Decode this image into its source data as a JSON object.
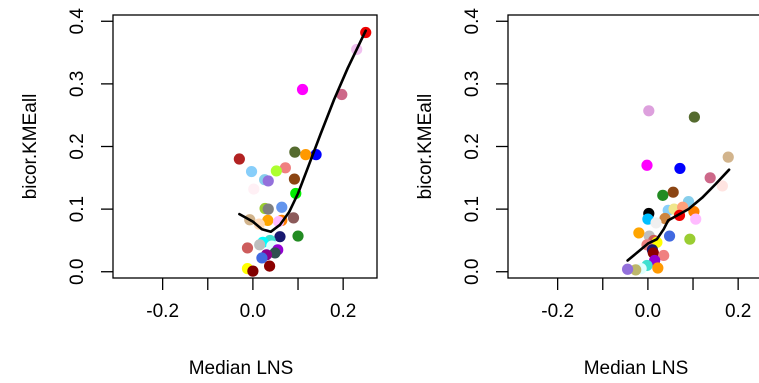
{
  "chart_data": [
    {
      "type": "scatter",
      "title": "",
      "xlabel": "Median LNS",
      "ylabel": "bicor.KMEall",
      "xlim": [
        -0.31,
        0.275
      ],
      "ylim": [
        -0.01,
        0.41
      ],
      "x_ticks": [
        -0.2,
        0.0,
        0.2
      ],
      "x_tick_labels": [
        "-0.2",
        "0.0",
        "0.2"
      ],
      "x_minor_ticks": [
        -0.1,
        0.1
      ],
      "y_ticks": [
        0.0,
        0.1,
        0.2,
        0.3,
        0.4
      ],
      "y_tick_labels": [
        "0.0",
        "0.1",
        "0.2",
        "0.3",
        "0.4"
      ],
      "grid": false,
      "points": [
        {
          "x": 0.25,
          "y": 0.382,
          "color": "#ee0000"
        },
        {
          "x": 0.23,
          "y": 0.355,
          "color": "#f0c0ef"
        },
        {
          "x": 0.11,
          "y": 0.291,
          "color": "#ff00ff"
        },
        {
          "x": 0.197,
          "y": 0.283,
          "color": "#cd6889"
        },
        {
          "x": 0.14,
          "y": 0.187,
          "color": "#0000ff"
        },
        {
          "x": 0.117,
          "y": 0.187,
          "color": "#ff9900"
        },
        {
          "x": 0.093,
          "y": 0.191,
          "color": "#556b2f"
        },
        {
          "x": 0.072,
          "y": 0.166,
          "color": "#f08080"
        },
        {
          "x": 0.052,
          "y": 0.161,
          "color": "#adff2f"
        },
        {
          "x": -0.03,
          "y": 0.18,
          "color": "#b22222"
        },
        {
          "x": -0.003,
          "y": 0.16,
          "color": "#87cefa"
        },
        {
          "x": 0.026,
          "y": 0.147,
          "color": "#87ceeb"
        },
        {
          "x": 0.034,
          "y": 0.145,
          "color": "#9370db"
        },
        {
          "x": 0.002,
          "y": 0.132,
          "color": "#fff0f5"
        },
        {
          "x": 0.092,
          "y": 0.148,
          "color": "#8b4513"
        },
        {
          "x": 0.095,
          "y": 0.125,
          "color": "#00ee00"
        },
        {
          "x": 0.027,
          "y": 0.101,
          "color": "#9acd32"
        },
        {
          "x": 0.034,
          "y": 0.1,
          "color": "#7f7f7f"
        },
        {
          "x": 0.064,
          "y": 0.103,
          "color": "#6495ed"
        },
        {
          "x": 0.033,
          "y": 0.082,
          "color": "#ffa500"
        },
        {
          "x": 0.064,
          "y": 0.082,
          "color": "#ff7f00"
        },
        {
          "x": 0.09,
          "y": 0.086,
          "color": "#8b5a5a"
        },
        {
          "x": 0.057,
          "y": 0.08,
          "color": "#ffbbff"
        },
        {
          "x": 0.014,
          "y": 0.076,
          "color": "#ffdab9"
        },
        {
          "x": -0.007,
          "y": 0.083,
          "color": "#d2b48c"
        },
        {
          "x": 0.1,
          "y": 0.057,
          "color": "#228b22"
        },
        {
          "x": 0.06,
          "y": 0.056,
          "color": "#191970"
        },
        {
          "x": 0.038,
          "y": 0.05,
          "color": "#40e0d0"
        },
        {
          "x": 0.022,
          "y": 0.047,
          "color": "#00ffff"
        },
        {
          "x": 0.015,
          "y": 0.043,
          "color": "#bebebe"
        },
        {
          "x": 0.042,
          "y": 0.041,
          "color": "#e0ffff"
        },
        {
          "x": -0.012,
          "y": 0.038,
          "color": "#cd5c5c"
        },
        {
          "x": 0.055,
          "y": 0.035,
          "color": "#9400d3"
        },
        {
          "x": 0.049,
          "y": 0.03,
          "color": "#2f4f4f"
        },
        {
          "x": 0.03,
          "y": 0.027,
          "color": "#8b008b"
        },
        {
          "x": 0.02,
          "y": 0.022,
          "color": "#4169e1"
        },
        {
          "x": 0.037,
          "y": 0.009,
          "color": "#8b0000"
        },
        {
          "x": -0.012,
          "y": 0.005,
          "color": "#ffff00"
        },
        {
          "x": 0.0,
          "y": 0.001,
          "color": "#800000"
        }
      ],
      "smoother": {
        "color": "#000000",
        "x": [
          -0.03,
          0.0,
          0.02,
          0.04,
          0.06,
          0.08,
          0.1,
          0.12,
          0.15,
          0.18,
          0.21,
          0.25
        ],
        "y": [
          0.092,
          0.08,
          0.068,
          0.064,
          0.075,
          0.095,
          0.125,
          0.163,
          0.22,
          0.275,
          0.325,
          0.385
        ]
      }
    },
    {
      "type": "scatter",
      "title": "",
      "xlabel": "Median LNS",
      "ylabel": "bicor.KMEall",
      "xlim": [
        -0.31,
        0.275
      ],
      "ylim": [
        -0.01,
        0.41
      ],
      "x_ticks": [
        -0.2,
        0.0,
        0.2
      ],
      "x_tick_labels": [
        "-0.2",
        "0.0",
        "0.2"
      ],
      "x_minor_ticks": [
        -0.1,
        0.1
      ],
      "y_ticks": [
        0.0,
        0.1,
        0.2,
        0.3,
        0.4
      ],
      "y_tick_labels": [
        "0.0",
        "0.1",
        "0.2",
        "0.3",
        "0.4"
      ],
      "grid": false,
      "points": [
        {
          "x": 0.002,
          "y": 0.257,
          "color": "#dda0dd"
        },
        {
          "x": 0.103,
          "y": 0.247,
          "color": "#556b2f"
        },
        {
          "x": 0.178,
          "y": 0.183,
          "color": "#d2b48c"
        },
        {
          "x": -0.002,
          "y": 0.17,
          "color": "#ff00ff"
        },
        {
          "x": 0.071,
          "y": 0.165,
          "color": "#0000ff"
        },
        {
          "x": 0.138,
          "y": 0.15,
          "color": "#cd6889"
        },
        {
          "x": 0.165,
          "y": 0.137,
          "color": "#ffe4e1"
        },
        {
          "x": 0.056,
          "y": 0.127,
          "color": "#8b4513"
        },
        {
          "x": 0.033,
          "y": 0.122,
          "color": "#228b22"
        },
        {
          "x": 0.09,
          "y": 0.112,
          "color": "#87ceeb"
        },
        {
          "x": 0.045,
          "y": 0.098,
          "color": "#87cefa"
        },
        {
          "x": 0.058,
          "y": 0.1,
          "color": "#f0e68c"
        },
        {
          "x": 0.077,
          "y": 0.103,
          "color": "#ffa07a"
        },
        {
          "x": 0.102,
          "y": 0.096,
          "color": "#ff7f00"
        },
        {
          "x": 0.106,
          "y": 0.084,
          "color": "#ffbbff"
        },
        {
          "x": 0.07,
          "y": 0.09,
          "color": "#ee0000"
        },
        {
          "x": 0.038,
          "y": 0.085,
          "color": "#cd853f"
        },
        {
          "x": 0.002,
          "y": 0.093,
          "color": "#000000"
        },
        {
          "x": 0.0,
          "y": 0.084,
          "color": "#00bfff"
        },
        {
          "x": 0.018,
          "y": 0.078,
          "color": "#f0f0f0"
        },
        {
          "x": 0.093,
          "y": 0.052,
          "color": "#9acd32"
        },
        {
          "x": 0.048,
          "y": 0.057,
          "color": "#4169e1"
        },
        {
          "x": -0.02,
          "y": 0.062,
          "color": "#ffa500"
        },
        {
          "x": 0.003,
          "y": 0.057,
          "color": "#bebebe"
        },
        {
          "x": 0.013,
          "y": 0.05,
          "color": "#cd5c5c"
        },
        {
          "x": 0.02,
          "y": 0.047,
          "color": "#ffff00"
        },
        {
          "x": -0.002,
          "y": 0.043,
          "color": "#f08080"
        },
        {
          "x": 0.01,
          "y": 0.035,
          "color": "#191970"
        },
        {
          "x": 0.012,
          "y": 0.03,
          "color": "#8b0000"
        },
        {
          "x": 0.035,
          "y": 0.026,
          "color": "#f08080"
        },
        {
          "x": 0.015,
          "y": 0.018,
          "color": "#9400d3"
        },
        {
          "x": -0.002,
          "y": 0.01,
          "color": "#40e0d0"
        },
        {
          "x": 0.022,
          "y": 0.006,
          "color": "#ff9900"
        },
        {
          "x": -0.015,
          "y": 0.005,
          "color": "#e0ffff"
        },
        {
          "x": -0.027,
          "y": 0.003,
          "color": "#bdb76b"
        },
        {
          "x": -0.045,
          "y": 0.004,
          "color": "#9370db"
        }
      ],
      "smoother": {
        "color": "#000000",
        "x": [
          -0.045,
          -0.02,
          0.0,
          0.02,
          0.035,
          0.045,
          0.06,
          0.09,
          0.12,
          0.15,
          0.18
        ],
        "y": [
          0.018,
          0.033,
          0.045,
          0.052,
          0.068,
          0.082,
          0.088,
          0.1,
          0.118,
          0.14,
          0.163
        ]
      }
    }
  ]
}
